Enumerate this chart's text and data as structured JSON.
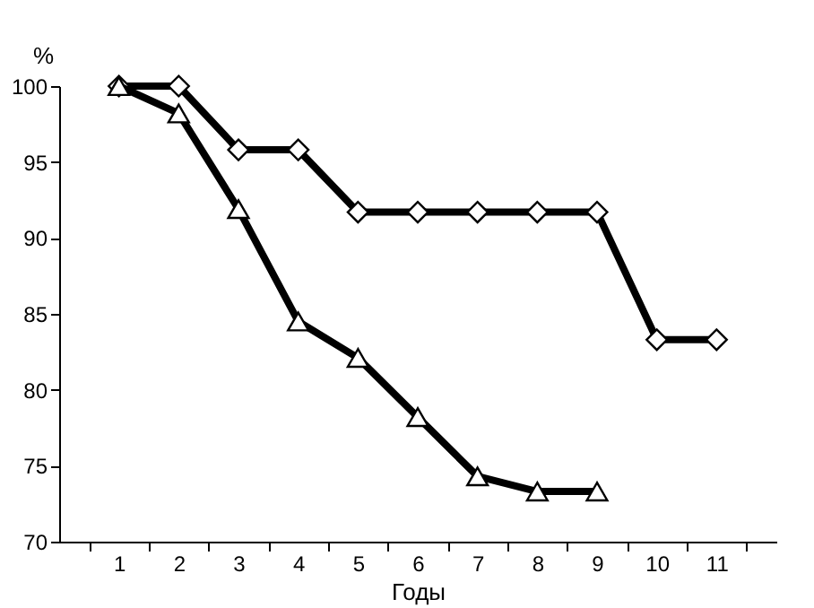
{
  "chart_data": {
    "type": "line",
    "xlabel": "Годы",
    "ylabel": "%",
    "categories": [
      "1",
      "2",
      "3",
      "4",
      "5",
      "6",
      "7",
      "8",
      "9",
      "10",
      "11"
    ],
    "series": [
      {
        "color": "#000000",
        "marker": "diamond",
        "values": [
          100,
          100,
          95.8,
          95.8,
          91.7,
          91.7,
          91.7,
          91.7,
          91.7,
          83.3,
          83.3
        ]
      },
      {
        "color": "#000000",
        "marker": "triangle",
        "values": [
          100,
          98.2,
          91.9,
          84.5,
          82.1,
          78.2,
          74.3,
          73.3,
          73.3,
          null,
          null
        ]
      }
    ],
    "ylim": [
      70,
      100
    ],
    "yticks": [
      70,
      75,
      80,
      85,
      90,
      95,
      100
    ],
    "grid": false,
    "line_style": "solid"
  }
}
